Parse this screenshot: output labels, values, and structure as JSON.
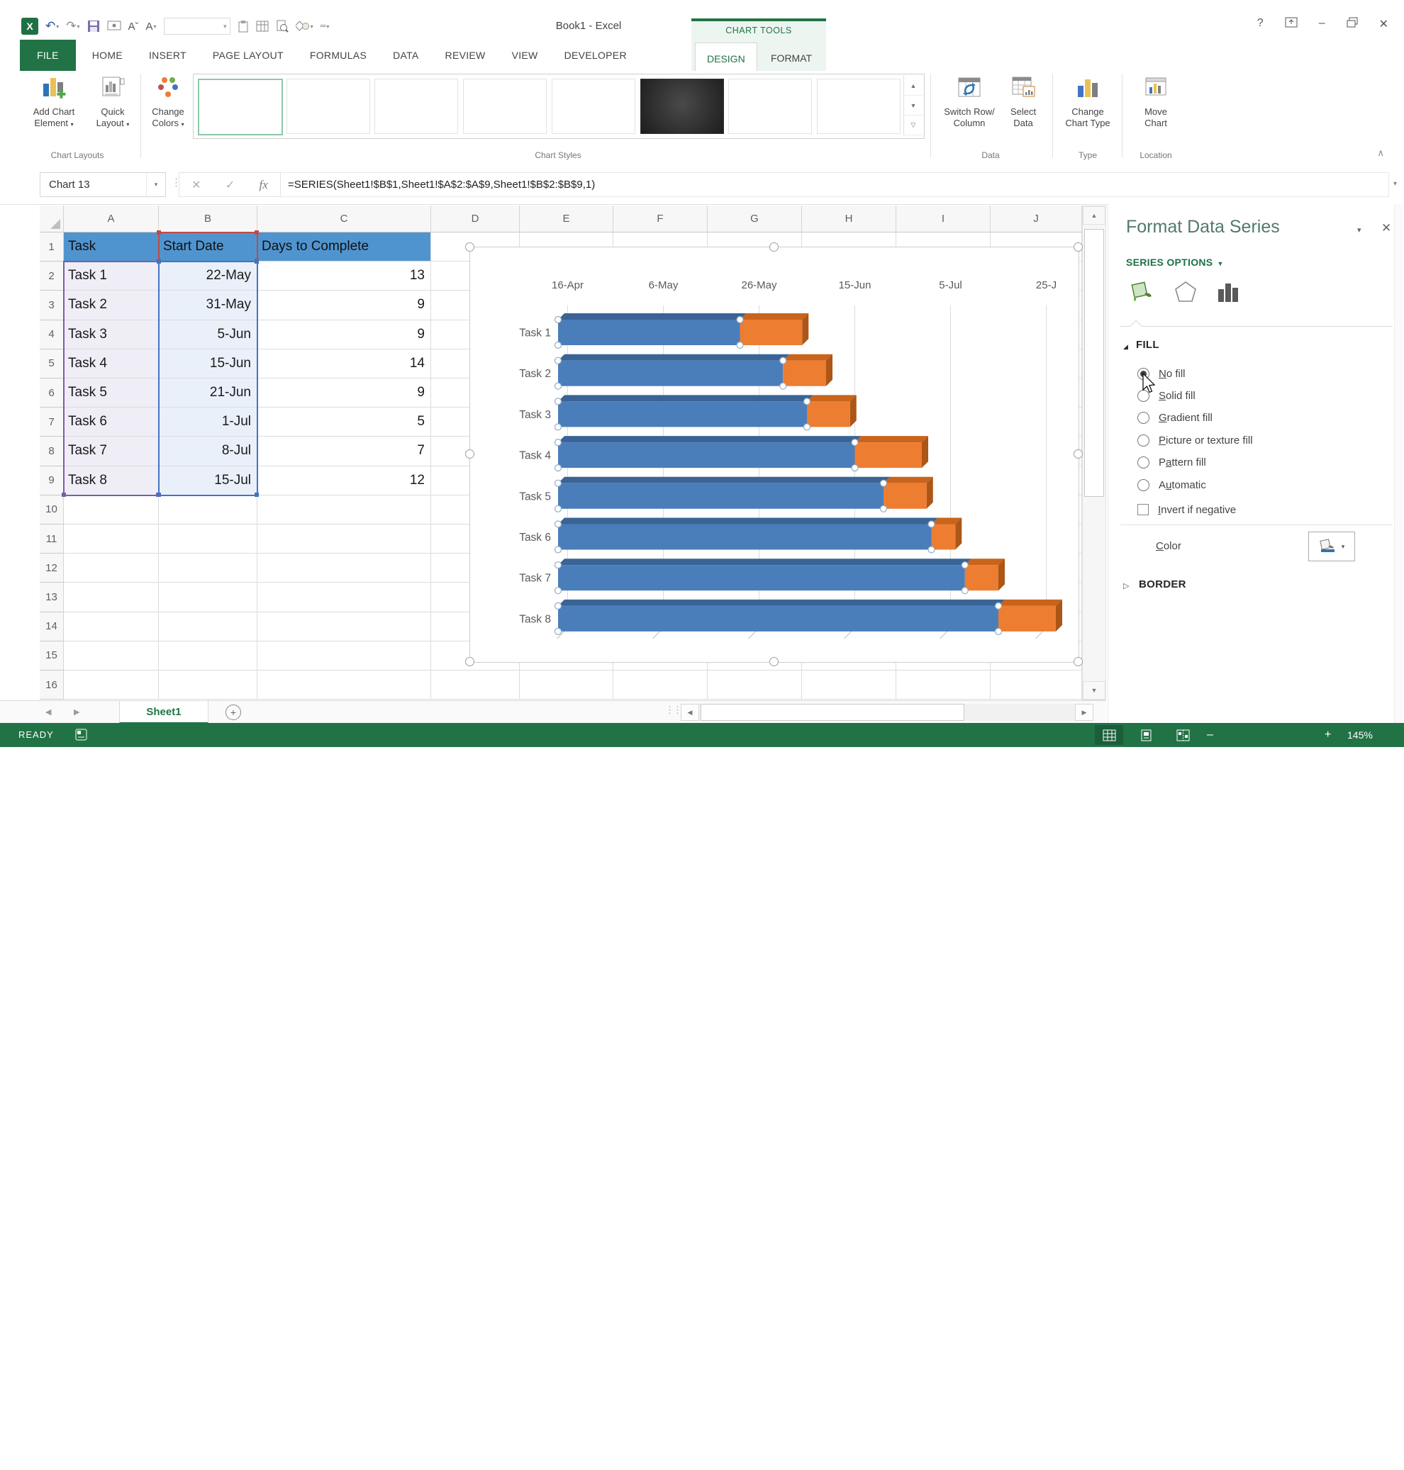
{
  "window": {
    "title": "Book1 - Excel",
    "contextual_tab_group": "CHART TOOLS",
    "help": "?"
  },
  "tabs": {
    "items": [
      "FILE",
      "HOME",
      "INSERT",
      "PAGE LAYOUT",
      "FORMULAS",
      "DATA",
      "REVIEW",
      "VIEW",
      "DEVELOPER"
    ],
    "contextual": [
      "DESIGN",
      "FORMAT"
    ],
    "active": "DESIGN"
  },
  "ribbon": {
    "buttons": {
      "add_chart_element": {
        "l1": "Add Chart",
        "l2": "Element"
      },
      "quick_layout": {
        "l1": "Quick",
        "l2": "Layout"
      },
      "change_colors": {
        "l1": "Change",
        "l2": "Colors"
      },
      "switch_row_column": {
        "l1": "Switch Row/",
        "l2": "Column"
      },
      "select_data": {
        "l1": "Select",
        "l2": "Data"
      },
      "change_chart_type": {
        "l1": "Change",
        "l2": "Chart Type"
      },
      "move_chart": {
        "l1": "Move",
        "l2": "Chart"
      }
    },
    "group_labels": [
      "Chart Layouts",
      "Chart Styles",
      "Data",
      "Type",
      "Location"
    ],
    "gallery": {
      "count": 8,
      "selected_index": 0,
      "dark_index": 5
    }
  },
  "formula_bar": {
    "name_box": "Chart 13",
    "formula": "=SERIES(Sheet1!$B$1,Sheet1!$A$2:$A$9,Sheet1!$B$2:$B$9,1)"
  },
  "grid": {
    "columns": [
      "A",
      "B",
      "C",
      "D",
      "E",
      "F",
      "G",
      "H",
      "I",
      "J"
    ],
    "rows": [
      "1",
      "2",
      "3",
      "4",
      "5",
      "6",
      "7",
      "8",
      "9",
      "10",
      "11",
      "12",
      "13",
      "14",
      "15",
      "16"
    ],
    "table": {
      "headers": [
        "Task",
        "Start Date",
        "Days to Complete"
      ],
      "rows": [
        [
          "Task 1",
          "22-May",
          13
        ],
        [
          "Task 2",
          "31-May",
          9
        ],
        [
          "Task 3",
          "5-Jun",
          9
        ],
        [
          "Task 4",
          "15-Jun",
          14
        ],
        [
          "Task 5",
          "21-Jun",
          9
        ],
        [
          "Task 6",
          "1-Jul",
          5
        ],
        [
          "Task 7",
          "8-Jul",
          7
        ],
        [
          "Task 8",
          "15-Jul",
          12
        ]
      ]
    }
  },
  "chart_data": {
    "type": "bar",
    "subtype": "horizontal-stacked-gantt-3d",
    "categories": [
      "Task 1",
      "Task 2",
      "Task 3",
      "Task 4",
      "Task 5",
      "Task 6",
      "Task 7",
      "Task 8"
    ],
    "series": [
      {
        "name": "Start Date",
        "values": [
          "22-May",
          "31-May",
          "5-Jun",
          "15-Jun",
          "21-Jun",
          "1-Jul",
          "8-Jul",
          "15-Jul"
        ],
        "color": "#4A7EBB",
        "selected": true
      },
      {
        "name": "Days to Complete",
        "values": [
          13,
          9,
          9,
          14,
          9,
          5,
          7,
          12
        ],
        "color": "#ED7D31"
      }
    ],
    "start_offsets_days": [
      38,
      47,
      52,
      62,
      68,
      78,
      85,
      92
    ],
    "x_axis": {
      "position": "top",
      "ticks": [
        "16-Apr",
        "6-May",
        "26-May",
        "15-Jun",
        "5-Jul",
        "25-J"
      ],
      "interval_days": 20
    },
    "tick_offsets_days": [
      2,
      22,
      42,
      62,
      82,
      102
    ],
    "gridlines": true,
    "legend": "none",
    "title": ""
  },
  "format_pane": {
    "title": "Format Data Series",
    "section_label": "SERIES OPTIONS",
    "tab_icons": [
      "fill-line-icon",
      "effects-icon",
      "series-options-icon"
    ],
    "fill": {
      "header": "FILL",
      "options": [
        {
          "label": "No fill",
          "key": "N",
          "selected": true
        },
        {
          "label": "Solid fill",
          "key": "S",
          "selected": false
        },
        {
          "label": "Gradient fill",
          "key": "G",
          "selected": false
        },
        {
          "label": "Picture or texture fill",
          "key": "P",
          "selected": false
        },
        {
          "label": "Pattern fill",
          "key": "a",
          "selected": false
        },
        {
          "label": "Automatic",
          "key": "u",
          "selected": false
        }
      ],
      "invert": {
        "label": "Invert if negative",
        "key": "I",
        "checked": false
      },
      "color_label": "Color",
      "color_key": "C"
    },
    "border": {
      "header": "BORDER",
      "collapsed": true
    }
  },
  "sheet_tabs": {
    "active": "Sheet1"
  },
  "status_bar": {
    "mode": "READY",
    "zoom": "145%"
  },
  "colors": {
    "excel_green": "#217346",
    "series_blue": "#4A7EBB",
    "series_orange": "#ED7D31",
    "header_fill": "#5094CF",
    "range_a_border": "#7B5EA7",
    "range_b_border": "#4472C4",
    "range_name_border": "#BE4B48"
  }
}
